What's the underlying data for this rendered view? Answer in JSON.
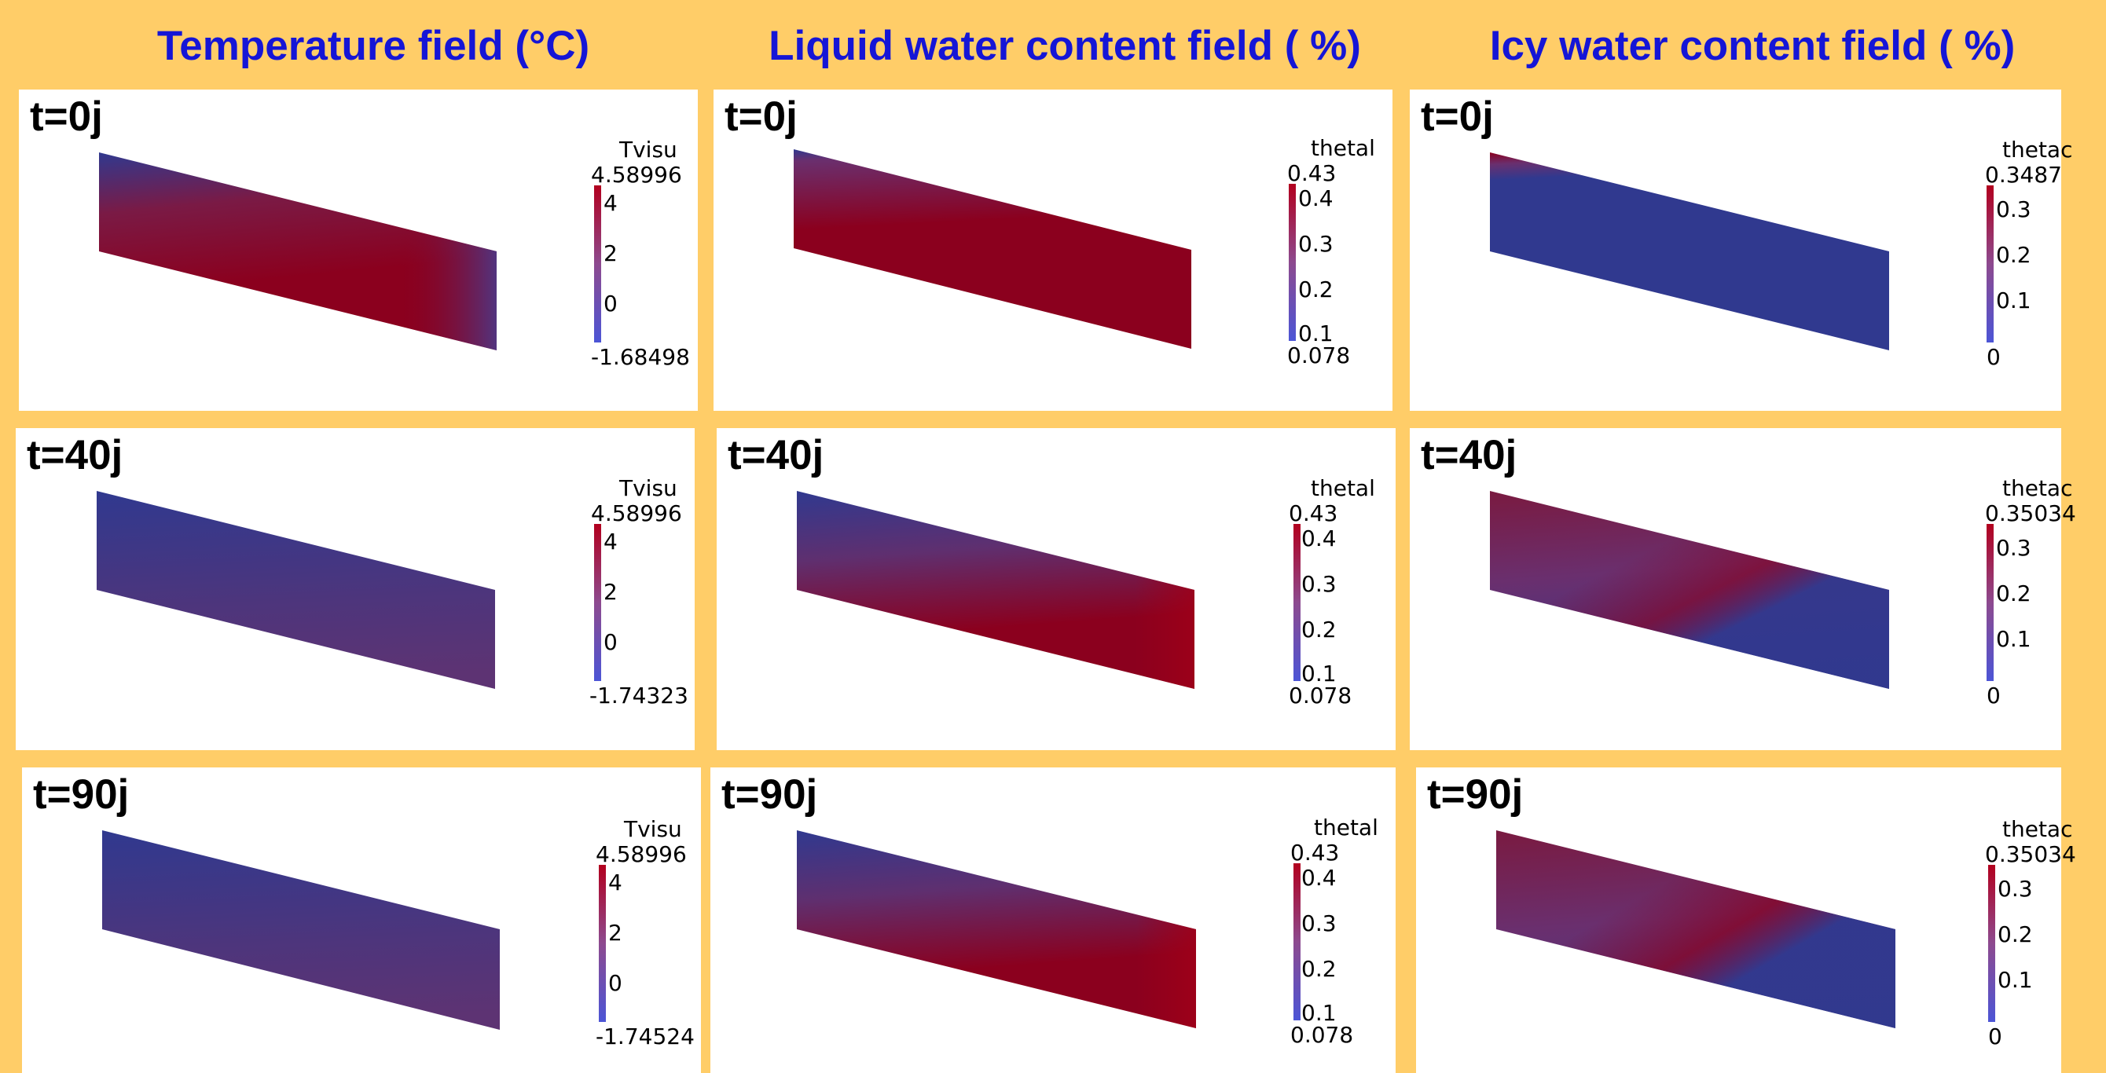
{
  "columns": [
    {
      "title": "Temperature field (°C)"
    },
    {
      "title": "Liquid water content field ( %)"
    },
    {
      "title": "Icy water content field ( %)"
    }
  ],
  "panels": [
    {
      "time": "t=0j",
      "cb_title": "Tvisu",
      "cb_max": "4.58996",
      "cb_min": "-1.68498",
      "ticks": [
        "4",
        "2",
        "0"
      ]
    },
    {
      "time": "t=0j",
      "cb_title": "thetal",
      "cb_max": "0.43",
      "cb_min": "0.078",
      "ticks": [
        "0.4",
        "0.3",
        "0.2",
        "0.1"
      ]
    },
    {
      "time": "t=0j",
      "cb_title": "thetac",
      "cb_max": "0.3487",
      "cb_min": "0",
      "ticks": [
        "0.3",
        "0.2",
        "0.1"
      ]
    },
    {
      "time": "t=40j",
      "cb_title": "Tvisu",
      "cb_max": "4.58996",
      "cb_min": "-1.74323",
      "ticks": [
        "4",
        "2",
        "0"
      ]
    },
    {
      "time": "t=40j",
      "cb_title": "thetal",
      "cb_max": "0.43",
      "cb_min": "0.078",
      "ticks": [
        "0.4",
        "0.3",
        "0.2",
        "0.1"
      ]
    },
    {
      "time": "t=40j",
      "cb_title": "thetac",
      "cb_max": "0.35034",
      "cb_min": "0",
      "ticks": [
        "0.3",
        "0.2",
        "0.1"
      ]
    },
    {
      "time": "t=90j",
      "cb_title": "Tvisu",
      "cb_max": "4.58996",
      "cb_min": "-1.74524",
      "ticks": [
        "4",
        "2",
        "0"
      ]
    },
    {
      "time": "t=90j",
      "cb_title": "thetal",
      "cb_max": "0.43",
      "cb_min": "0.078",
      "ticks": [
        "0.4",
        "0.3",
        "0.2",
        "0.1"
      ]
    },
    {
      "time": "t=90j",
      "cb_title": "thetac",
      "cb_max": "0.35034",
      "cb_min": "0",
      "ticks": [
        "0.3",
        "0.2",
        "0.1"
      ]
    }
  ],
  "colors": {
    "background": "#ffcd68",
    "title": "#1515d6",
    "cold_blue": "#30398f",
    "warm_red": "#8b001e",
    "mid_purple": "#6a2f6e"
  }
}
